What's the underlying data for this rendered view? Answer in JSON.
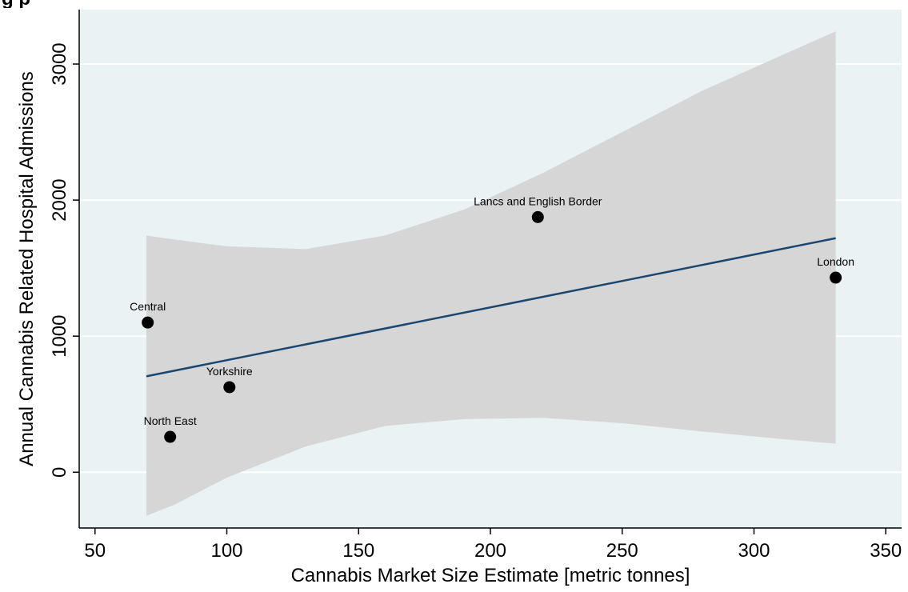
{
  "page_heading": "g                                                                                                                              p",
  "chart_data": {
    "type": "scatter",
    "title": "",
    "xlabel": "Cannabis Market Size Estimate [metric tonnes]",
    "ylabel": "Annual Cannabis Related Hospital Admissions",
    "xlim": [
      44,
      356
    ],
    "ylim": [
      -410,
      3400
    ],
    "x_ticks": [
      50,
      100,
      150,
      200,
      250,
      300,
      350
    ],
    "y_ticks": [
      0,
      1000,
      2000,
      3000
    ],
    "grid": "horizontal",
    "legend": "none",
    "points": [
      {
        "label": "Central",
        "x": 70,
        "y": 1100
      },
      {
        "label": "North East",
        "x": 78.5,
        "y": 260
      },
      {
        "label": "Yorkshire",
        "x": 101,
        "y": 625
      },
      {
        "label": "Lancs and English Border",
        "x": 218,
        "y": 1875
      },
      {
        "label": "London",
        "x": 331,
        "y": 1430
      }
    ],
    "fit_line": {
      "x": [
        69.5,
        331
      ],
      "y": [
        705,
        1720
      ]
    },
    "confidence_band": {
      "x": [
        69.5,
        80,
        100,
        130,
        160,
        190,
        220,
        250,
        280,
        310,
        331
      ],
      "upper": [
        1740,
        1710,
        1660,
        1640,
        1740,
        1930,
        2200,
        2500,
        2800,
        3060,
        3240
      ],
      "lower": [
        -320,
        -240,
        -40,
        190,
        340,
        390,
        400,
        360,
        300,
        245,
        210
      ]
    },
    "colors": {
      "plot_background": "#eaf2f3",
      "band": "#d6d6d6",
      "line": "#1a476f",
      "points": "#000000",
      "grid": "#ffffff"
    }
  }
}
